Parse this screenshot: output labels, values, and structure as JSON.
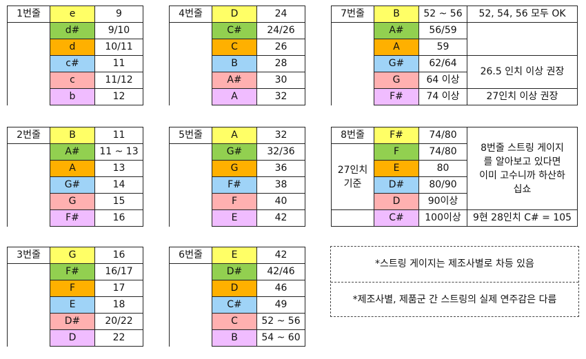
{
  "colors": {
    "yellow": "#ffff66",
    "green": "#92d050",
    "orange": "#ffb000",
    "blue": "#9fd3f7",
    "pink": "#ffb0b0",
    "violet": "#f0bcff"
  },
  "tables": [
    {
      "label": "1번줄",
      "rows": [
        {
          "note": "e",
          "value": "9",
          "color": "yellow"
        },
        {
          "note": "d#",
          "value": "9/10",
          "color": "green"
        },
        {
          "note": "d",
          "value": "10/11",
          "color": "orange"
        },
        {
          "note": "c#",
          "value": "11",
          "color": "blue"
        },
        {
          "note": "c",
          "value": "11/12",
          "color": "pink"
        },
        {
          "note": "b",
          "value": "12",
          "color": "violet"
        }
      ]
    },
    {
      "label": "4번줄",
      "rows": [
        {
          "note": "D",
          "value": "24",
          "color": "yellow"
        },
        {
          "note": "C#",
          "value": "24/26",
          "color": "green"
        },
        {
          "note": "C",
          "value": "26",
          "color": "orange"
        },
        {
          "note": "B",
          "value": "28",
          "color": "blue"
        },
        {
          "note": "A#",
          "value": "30",
          "color": "pink"
        },
        {
          "note": "A",
          "value": "32",
          "color": "violet"
        }
      ]
    },
    {
      "label": "7번줄",
      "rows": [
        {
          "note": "B",
          "value": "52 ~ 56",
          "color": "yellow"
        },
        {
          "note": "A#",
          "value": "56/59",
          "color": "green"
        },
        {
          "note": "A",
          "value": "59",
          "color": "orange"
        },
        {
          "note": "G#",
          "value": "62/64",
          "color": "blue"
        },
        {
          "note": "G",
          "value": "64 이상",
          "color": "pink"
        },
        {
          "note": "F#",
          "value": "74 이상",
          "color": "violet"
        }
      ],
      "remarks": [
        "52, 54, 56 모두 OK",
        "26.5 인치 이상 권장",
        "27인치 이상 권장"
      ]
    },
    {
      "label": "2번줄",
      "rows": [
        {
          "note": "B",
          "value": "11",
          "color": "yellow"
        },
        {
          "note": "A#",
          "value": "11 ~ 13",
          "color": "green"
        },
        {
          "note": "A",
          "value": "13",
          "color": "orange"
        },
        {
          "note": "G#",
          "value": "14",
          "color": "blue"
        },
        {
          "note": "G",
          "value": "15",
          "color": "pink"
        },
        {
          "note": "F#",
          "value": "16",
          "color": "violet"
        }
      ]
    },
    {
      "label": "5번줄",
      "rows": [
        {
          "note": "A",
          "value": "32",
          "color": "yellow"
        },
        {
          "note": "G#",
          "value": "32/36",
          "color": "green"
        },
        {
          "note": "G",
          "value": "36",
          "color": "orange"
        },
        {
          "note": "F#",
          "value": "38",
          "color": "blue"
        },
        {
          "note": "F",
          "value": "40",
          "color": "pink"
        },
        {
          "note": "E",
          "value": "42",
          "color": "violet"
        }
      ]
    },
    {
      "label": "8번줄",
      "sublabel": [
        "27인치",
        "기준"
      ],
      "rows": [
        {
          "note": "F#",
          "value": "74/80",
          "color": "yellow"
        },
        {
          "note": "F",
          "value": "74/80",
          "color": "green"
        },
        {
          "note": "E",
          "value": "80",
          "color": "orange"
        },
        {
          "note": "D#",
          "value": "80/90",
          "color": "blue"
        },
        {
          "note": "D",
          "value": "90이상",
          "color": "pink"
        },
        {
          "note": "C#",
          "value": "100이상",
          "color": "violet"
        }
      ],
      "remarks": [
        "8번줄 스트링 게이지를 알아보고 있다면 이미 고수니까 하산하십쇼",
        "9현 28인치 C# = 105"
      ]
    },
    {
      "label": "3번줄",
      "rows": [
        {
          "note": "G",
          "value": "16",
          "color": "yellow"
        },
        {
          "note": "F#",
          "value": "16/17",
          "color": "green"
        },
        {
          "note": "F",
          "value": "17",
          "color": "orange"
        },
        {
          "note": "E",
          "value": "18",
          "color": "blue"
        },
        {
          "note": "D#",
          "value": "20/22",
          "color": "pink"
        },
        {
          "note": "D",
          "value": "22",
          "color": "violet"
        }
      ]
    },
    {
      "label": "6번줄",
      "rows": [
        {
          "note": "E",
          "value": "42",
          "color": "yellow"
        },
        {
          "note": "D#",
          "value": "42/46",
          "color": "green"
        },
        {
          "note": "D",
          "value": "46",
          "color": "orange"
        },
        {
          "note": "C#",
          "value": "49",
          "color": "blue"
        },
        {
          "note": "C",
          "value": "52 ~ 56",
          "color": "pink"
        },
        {
          "note": "B",
          "value": "54 ~ 60",
          "color": "violet"
        }
      ]
    }
  ],
  "footnotes": [
    "*스트링 게이지는 제조사별로 차등 있음",
    "*제조사별, 제품군 간 스트링의 실제 연주감은 다름"
  ]
}
